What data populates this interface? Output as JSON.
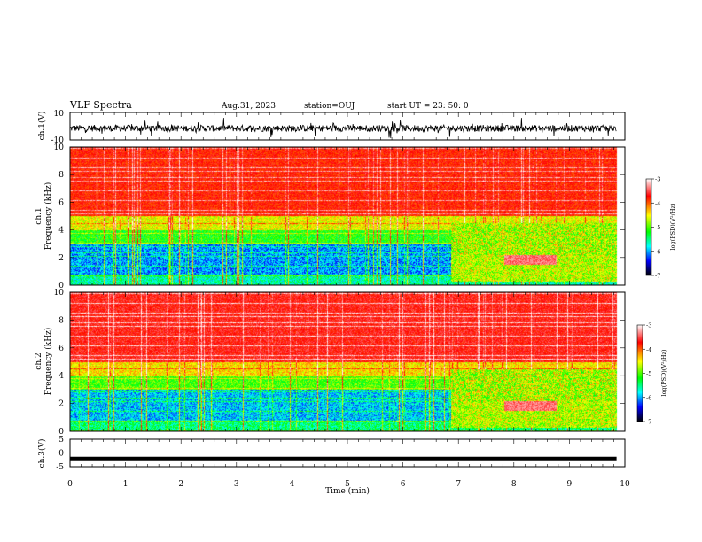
{
  "header": {
    "title": "VLF Spectra",
    "date": "Aug.31, 2023",
    "station": "station=OUJ",
    "start": "start  UT =  23: 50: 0"
  },
  "chart_data": [
    {
      "type": "line",
      "name": "ch1-waveform",
      "ylabel": "ch.1(V)",
      "ylim": [
        -10,
        10
      ],
      "ytick_labels": [
        "10",
        "-10"
      ],
      "x_range_min": [
        0,
        9.85
      ],
      "baseline_v": -1.5,
      "amplitude_v_typical": 4
    },
    {
      "type": "heatmap",
      "name": "ch1-spectrogram",
      "ylabel_line1": "ch.1",
      "ylabel_line2": "Frequency (kHz)",
      "ylim_khz": [
        0,
        10
      ],
      "ytick_labels": [
        "0",
        "2",
        "4",
        "6",
        "8",
        "10"
      ],
      "x_range_min": [
        0,
        9.85
      ],
      "colorbar": {
        "label": "log(PSD)(V²/Hz)",
        "range": [
          -7,
          -3
        ],
        "tick_labels": [
          "-3",
          "-4",
          "-5",
          "-6",
          "-7"
        ],
        "colors": [
          "#ffffff",
          "#ff0000",
          "#ffff00",
          "#00ff00",
          "#00ffff",
          "#0000ff",
          "#000000"
        ]
      },
      "regime_change_min": 6.85
    },
    {
      "type": "heatmap",
      "name": "ch2-spectrogram",
      "ylabel_line1": "ch.2",
      "ylabel_line2": "Frequency (kHz)",
      "ylim_khz": [
        0,
        10
      ],
      "ytick_labels": [
        "0",
        "2",
        "4",
        "6",
        "8",
        "10"
      ],
      "x_range_min": [
        0,
        9.85
      ],
      "colorbar": {
        "label": "log(PSD)(V²/Hz)",
        "range": [
          -7,
          -3
        ],
        "tick_labels": [
          "-3",
          "-4",
          "-5",
          "-6",
          "-7"
        ],
        "colors": [
          "#ffffff",
          "#ff0000",
          "#ffff00",
          "#00ff00",
          "#00ffff",
          "#0000ff",
          "#000000"
        ]
      },
      "regime_change_min": 6.85
    },
    {
      "type": "line",
      "name": "ch3-signal",
      "ylabel": "ch.3(V)",
      "ylim": [
        -5,
        5
      ],
      "ytick_labels": [
        "5",
        "0",
        "-5"
      ],
      "x_range_min": [
        0,
        9.85
      ],
      "value_v": -2
    }
  ],
  "xaxis": {
    "label": "Time (min)",
    "range": [
      0,
      10
    ],
    "tick_labels": [
      "0",
      "1",
      "2",
      "3",
      "4",
      "5",
      "6",
      "7",
      "8",
      "9",
      "10"
    ]
  }
}
